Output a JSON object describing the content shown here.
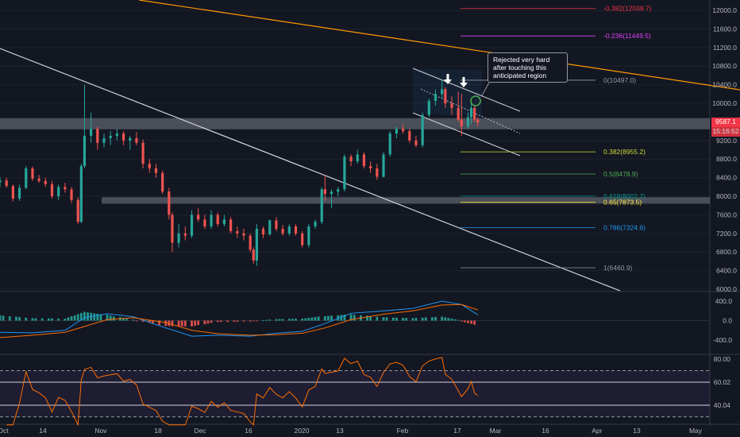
{
  "chart_data": [
    {
      "type": "candlestick",
      "title": "",
      "y_ticks": [
        12000,
        11600,
        11200,
        10800,
        10400,
        10000,
        9600,
        9200,
        8800,
        8400,
        8000,
        7600,
        7200,
        6800,
        6400,
        6000
      ],
      "y_tick_labels": [
        "12000.0",
        "11600.0",
        "11200.0",
        "10800.0",
        "10400.0",
        "10000.0",
        "9600.0",
        "9200.0",
        "8800.0",
        "8400.0",
        "8000.0",
        "7600.0",
        "7200.0",
        "6800.0",
        "6400.0",
        "6000.0"
      ],
      "ylim": [
        5980,
        12220
      ],
      "x_labels": [
        "Oct",
        "14",
        "Nov",
        "18",
        "Dec",
        "16",
        "2020",
        "13",
        "Feb",
        "17",
        "Mar",
        "16",
        "Apr",
        "13",
        "May"
      ],
      "x_domain": [
        "2019-09-30",
        "2020-05-01"
      ],
      "current_price_label": "9587.1",
      "countdown_label": "15:16:52",
      "fib_levels": [
        {
          "ratio": "-0.382",
          "value": "12038.7",
          "label": "-0.382(12038.7)",
          "color": "#f23645",
          "price": 12038.7
        },
        {
          "ratio": "-0.236",
          "value": "11449.5",
          "label": "-0.236(11449.5)",
          "color": "#e040fb",
          "price": 11449.5
        },
        {
          "ratio": "0",
          "value": "10497.0",
          "label": "0(10497.0)",
          "color": "#9598a1",
          "price": 10497.0
        },
        {
          "ratio": "0.382",
          "value": "8955.2",
          "label": "0.382(8955.2)",
          "color": "#cddc39",
          "price": 8955.2
        },
        {
          "ratio": "0.5",
          "value": "8478.9",
          "label": "0.5(8478.9)",
          "color": "#4caf50",
          "price": 8478.9
        },
        {
          "ratio": "0.618",
          "value": "8002.7",
          "label": "0.618(8002.7)",
          "color": "#009688",
          "price": 8002.7
        },
        {
          "ratio": "0.65",
          "value": "7873.5",
          "label": "0.65(7873.5)",
          "color": "#ffeb3b",
          "price": 7873.5
        },
        {
          "ratio": "0.786",
          "value": "7324.6",
          "label": "0.786(7324.6)",
          "color": "#2196f3",
          "price": 7324.6
        },
        {
          "ratio": "1",
          "value": "6460.9",
          "label": "1(6460.9)",
          "color": "#9598a1",
          "price": 6460.9
        }
      ],
      "annotation": "Rejected very hard after touching this anticipated region",
      "candles": [
        {
          "d": "2019-09-30",
          "o": 8300,
          "h": 8410,
          "l": 8190,
          "c": 8340
        },
        {
          "d": "2019-10-02",
          "o": 8340,
          "h": 8400,
          "l": 8180,
          "c": 8220
        },
        {
          "d": "2019-10-04",
          "o": 8220,
          "h": 8250,
          "l": 7890,
          "c": 7950
        },
        {
          "d": "2019-10-06",
          "o": 7950,
          "h": 8250,
          "l": 7900,
          "c": 8180
        },
        {
          "d": "2019-10-08",
          "o": 8180,
          "h": 8650,
          "l": 8150,
          "c": 8600
        },
        {
          "d": "2019-10-10",
          "o": 8600,
          "h": 8640,
          "l": 8330,
          "c": 8380
        },
        {
          "d": "2019-10-12",
          "o": 8380,
          "h": 8460,
          "l": 8290,
          "c": 8330
        },
        {
          "d": "2019-10-14",
          "o": 8330,
          "h": 8400,
          "l": 8200,
          "c": 8260
        },
        {
          "d": "2019-10-16",
          "o": 8260,
          "h": 8330,
          "l": 7950,
          "c": 8000
        },
        {
          "d": "2019-10-18",
          "o": 8000,
          "h": 8250,
          "l": 7920,
          "c": 8200
        },
        {
          "d": "2019-10-20",
          "o": 8200,
          "h": 8290,
          "l": 8080,
          "c": 8150
        },
        {
          "d": "2019-10-22",
          "o": 8150,
          "h": 8200,
          "l": 7850,
          "c": 7920
        },
        {
          "d": "2019-10-24",
          "o": 7920,
          "h": 7980,
          "l": 7400,
          "c": 7450
        },
        {
          "d": "2019-10-25",
          "o": 7450,
          "h": 8700,
          "l": 7420,
          "c": 8650
        },
        {
          "d": "2019-10-26",
          "o": 8650,
          "h": 10400,
          "l": 8600,
          "c": 9300
        },
        {
          "d": "2019-10-28",
          "o": 9300,
          "h": 9800,
          "l": 9150,
          "c": 9450
        },
        {
          "d": "2019-10-30",
          "o": 9450,
          "h": 9500,
          "l": 9000,
          "c": 9150
        },
        {
          "d": "2019-11-01",
          "o": 9150,
          "h": 9350,
          "l": 9050,
          "c": 9250
        },
        {
          "d": "2019-11-03",
          "o": 9250,
          "h": 9400,
          "l": 9100,
          "c": 9300
        },
        {
          "d": "2019-11-05",
          "o": 9300,
          "h": 9450,
          "l": 9200,
          "c": 9350
        },
        {
          "d": "2019-11-07",
          "o": 9350,
          "h": 9400,
          "l": 9100,
          "c": 9200
        },
        {
          "d": "2019-11-09",
          "o": 9200,
          "h": 9300,
          "l": 9000,
          "c": 9250
        },
        {
          "d": "2019-11-11",
          "o": 9250,
          "h": 9380,
          "l": 9100,
          "c": 9150
        },
        {
          "d": "2019-11-13",
          "o": 9150,
          "h": 9220,
          "l": 8600,
          "c": 8700
        },
        {
          "d": "2019-11-15",
          "o": 8700,
          "h": 8800,
          "l": 8500,
          "c": 8600
        },
        {
          "d": "2019-11-17",
          "o": 8600,
          "h": 8700,
          "l": 8400,
          "c": 8500
        },
        {
          "d": "2019-11-19",
          "o": 8500,
          "h": 8550,
          "l": 8050,
          "c": 8100
        },
        {
          "d": "2019-11-21",
          "o": 8100,
          "h": 8180,
          "l": 7500,
          "c": 7600
        },
        {
          "d": "2019-11-22",
          "o": 7600,
          "h": 7650,
          "l": 6800,
          "c": 7000
        },
        {
          "d": "2019-11-24",
          "o": 7000,
          "h": 7400,
          "l": 6900,
          "c": 7200
        },
        {
          "d": "2019-11-26",
          "o": 7200,
          "h": 7350,
          "l": 7050,
          "c": 7150
        },
        {
          "d": "2019-11-28",
          "o": 7150,
          "h": 7700,
          "l": 7100,
          "c": 7600
        },
        {
          "d": "2019-11-30",
          "o": 7600,
          "h": 7750,
          "l": 7450,
          "c": 7500
        },
        {
          "d": "2019-12-02",
          "o": 7500,
          "h": 7600,
          "l": 7300,
          "c": 7350
        },
        {
          "d": "2019-12-04",
          "o": 7350,
          "h": 7700,
          "l": 7300,
          "c": 7600
        },
        {
          "d": "2019-12-06",
          "o": 7600,
          "h": 7650,
          "l": 7350,
          "c": 7400
        },
        {
          "d": "2019-12-08",
          "o": 7400,
          "h": 7600,
          "l": 7350,
          "c": 7500
        },
        {
          "d": "2019-12-10",
          "o": 7500,
          "h": 7550,
          "l": 7200,
          "c": 7250
        },
        {
          "d": "2019-12-12",
          "o": 7250,
          "h": 7350,
          "l": 7100,
          "c": 7200
        },
        {
          "d": "2019-12-14",
          "o": 7200,
          "h": 7300,
          "l": 7050,
          "c": 7150
        },
        {
          "d": "2019-12-16",
          "o": 7150,
          "h": 7200,
          "l": 6800,
          "c": 6850
        },
        {
          "d": "2019-12-17",
          "o": 6850,
          "h": 6900,
          "l": 6550,
          "c": 6620
        },
        {
          "d": "2019-12-18",
          "o": 6620,
          "h": 7400,
          "l": 6500,
          "c": 7300
        },
        {
          "d": "2019-12-20",
          "o": 7300,
          "h": 7350,
          "l": 7100,
          "c": 7180
        },
        {
          "d": "2019-12-22",
          "o": 7180,
          "h": 7500,
          "l": 7150,
          "c": 7480
        },
        {
          "d": "2019-12-24",
          "o": 7480,
          "h": 7550,
          "l": 7250,
          "c": 7300
        },
        {
          "d": "2019-12-26",
          "o": 7300,
          "h": 7380,
          "l": 7150,
          "c": 7200
        },
        {
          "d": "2019-12-28",
          "o": 7200,
          "h": 7400,
          "l": 7150,
          "c": 7350
        },
        {
          "d": "2019-12-30",
          "o": 7350,
          "h": 7400,
          "l": 7150,
          "c": 7200
        },
        {
          "d": "2020-01-01",
          "o": 7200,
          "h": 7250,
          "l": 6900,
          "c": 6950
        },
        {
          "d": "2020-01-03",
          "o": 6950,
          "h": 7400,
          "l": 6900,
          "c": 7350
        },
        {
          "d": "2020-01-05",
          "o": 7350,
          "h": 7500,
          "l": 7300,
          "c": 7450
        },
        {
          "d": "2020-01-07",
          "o": 7450,
          "h": 8200,
          "l": 7400,
          "c": 8150
        },
        {
          "d": "2020-01-08",
          "o": 8150,
          "h": 8450,
          "l": 7900,
          "c": 8050
        },
        {
          "d": "2020-01-10",
          "o": 8050,
          "h": 8150,
          "l": 7750,
          "c": 8100
        },
        {
          "d": "2020-01-12",
          "o": 8100,
          "h": 8200,
          "l": 8000,
          "c": 8150
        },
        {
          "d": "2020-01-14",
          "o": 8150,
          "h": 8900,
          "l": 8100,
          "c": 8850
        },
        {
          "d": "2020-01-16",
          "o": 8850,
          "h": 8900,
          "l": 8650,
          "c": 8750
        },
        {
          "d": "2020-01-18",
          "o": 8750,
          "h": 9000,
          "l": 8700,
          "c": 8900
        },
        {
          "d": "2020-01-20",
          "o": 8900,
          "h": 8950,
          "l": 8600,
          "c": 8650
        },
        {
          "d": "2020-01-22",
          "o": 8650,
          "h": 8750,
          "l": 8500,
          "c": 8600
        },
        {
          "d": "2020-01-24",
          "o": 8600,
          "h": 8700,
          "l": 8350,
          "c": 8420
        },
        {
          "d": "2020-01-26",
          "o": 8420,
          "h": 8950,
          "l": 8400,
          "c": 8900
        },
        {
          "d": "2020-01-28",
          "o": 8900,
          "h": 9400,
          "l": 8850,
          "c": 9350
        },
        {
          "d": "2020-01-30",
          "o": 9350,
          "h": 9500,
          "l": 9250,
          "c": 9450
        },
        {
          "d": "2020-02-01",
          "o": 9450,
          "h": 9550,
          "l": 9350,
          "c": 9400
        },
        {
          "d": "2020-02-03",
          "o": 9400,
          "h": 9450,
          "l": 9150,
          "c": 9200
        },
        {
          "d": "2020-02-05",
          "o": 9200,
          "h": 9300,
          "l": 9050,
          "c": 9100
        },
        {
          "d": "2020-02-07",
          "o": 9100,
          "h": 9800,
          "l": 9050,
          "c": 9750
        },
        {
          "d": "2020-02-09",
          "o": 9750,
          "h": 10100,
          "l": 9700,
          "c": 10050
        },
        {
          "d": "2020-02-11",
          "o": 10050,
          "h": 10300,
          "l": 9950,
          "c": 10200
        },
        {
          "d": "2020-02-13",
          "o": 10200,
          "h": 10500,
          "l": 10100,
          "c": 10300
        },
        {
          "d": "2020-02-14",
          "o": 10300,
          "h": 10350,
          "l": 9900,
          "c": 10000
        },
        {
          "d": "2020-02-16",
          "o": 10000,
          "h": 10150,
          "l": 9750,
          "c": 9900
        },
        {
          "d": "2020-02-18",
          "o": 9900,
          "h": 10250,
          "l": 9600,
          "c": 9650
        },
        {
          "d": "2020-02-19",
          "o": 9650,
          "h": 10200,
          "l": 9300,
          "c": 9500
        },
        {
          "d": "2020-02-21",
          "o": 9500,
          "h": 9800,
          "l": 9450,
          "c": 9700
        },
        {
          "d": "2020-02-22",
          "o": 9700,
          "h": 10000,
          "l": 9550,
          "c": 9900
        },
        {
          "d": "2020-02-23",
          "o": 9900,
          "h": 9950,
          "l": 9600,
          "c": 9650
        },
        {
          "d": "2020-02-24",
          "o": 9650,
          "h": 9700,
          "l": 9500,
          "c": 9587
        }
      ],
      "macd": {
        "y_ticks": [
          400,
          0,
          -400
        ],
        "y_tick_labels": [
          "400.0",
          "0.0",
          "-400.0"
        ],
        "ylim": [
          -600,
          560
        ],
        "macd_line": [
          [
            "2019-09-30",
            -240
          ],
          [
            "2019-10-10",
            -250
          ],
          [
            "2019-10-20",
            -200
          ],
          [
            "2019-10-26",
            60
          ],
          [
            "2019-11-02",
            140
          ],
          [
            "2019-11-10",
            80
          ],
          [
            "2019-11-20",
            -150
          ],
          [
            "2019-11-28",
            -320
          ],
          [
            "2019-12-06",
            -300
          ],
          [
            "2019-12-16",
            -320
          ],
          [
            "2019-12-24",
            -260
          ],
          [
            "2020-01-01",
            -220
          ],
          [
            "2020-01-08",
            -60
          ],
          [
            "2020-01-16",
            150
          ],
          [
            "2020-01-26",
            200
          ],
          [
            "2020-02-04",
            250
          ],
          [
            "2020-02-13",
            400
          ],
          [
            "2020-02-19",
            330
          ],
          [
            "2020-02-24",
            120
          ]
        ],
        "signal_line": [
          [
            "2019-09-30",
            -350
          ],
          [
            "2019-10-10",
            -300
          ],
          [
            "2019-10-20",
            -240
          ],
          [
            "2019-10-26",
            -120
          ],
          [
            "2019-11-02",
            20
          ],
          [
            "2019-11-10",
            60
          ],
          [
            "2019-11-20",
            -40
          ],
          [
            "2019-11-28",
            -200
          ],
          [
            "2019-12-06",
            -270
          ],
          [
            "2019-12-16",
            -300
          ],
          [
            "2019-12-24",
            -290
          ],
          [
            "2020-01-01",
            -260
          ],
          [
            "2020-01-08",
            -150
          ],
          [
            "2020-01-16",
            20
          ],
          [
            "2020-01-26",
            130
          ],
          [
            "2020-02-04",
            200
          ],
          [
            "2020-02-13",
            320
          ],
          [
            "2020-02-19",
            330
          ],
          [
            "2020-02-24",
            220
          ]
        ],
        "colors": {
          "macd": "#2196f3",
          "signal": "#ff6d00",
          "hist_pos": "#26a69a",
          "hist_pos_light": "#b2dfdb",
          "hist_neg": "#ef5350",
          "hist_neg_light": "#ffcdd2"
        }
      },
      "rsi": {
        "y_ticks": [
          80,
          60.02,
          40.04
        ],
        "y_tick_labels": [
          "80.00",
          "60.02",
          "40.04"
        ],
        "ylim": [
          22,
          84
        ],
        "bands": {
          "upper": 70,
          "lower": 30
        },
        "color": "#ff6d00"
      }
    }
  ]
}
